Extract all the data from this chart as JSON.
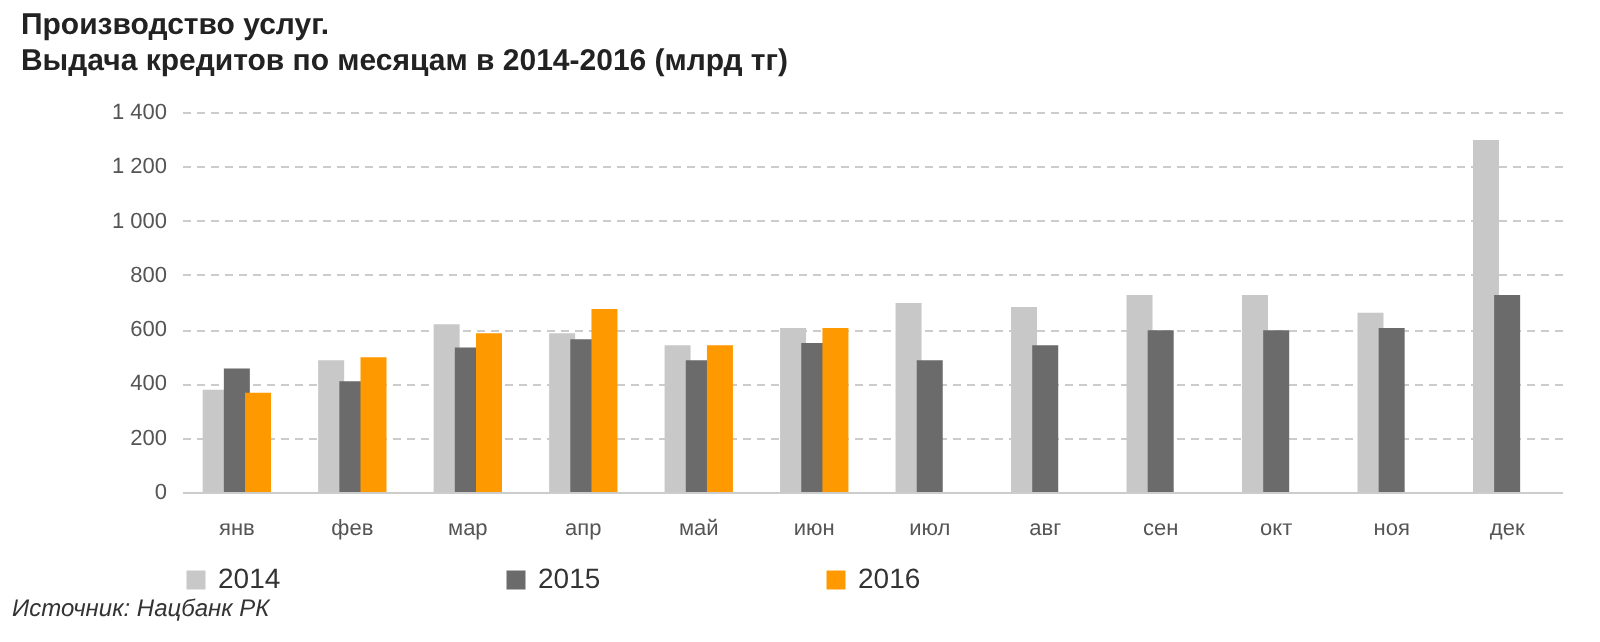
{
  "chart_data": {
    "type": "bar",
    "title": "Производство услуг.",
    "subtitle": "Выдача кредитов по месяцам в 2014-2016 (млрд тг)",
    "categories": [
      "янв",
      "фев",
      "мар",
      "апр",
      "май",
      "июн",
      "июл",
      "авг",
      "сен",
      "окт",
      "ноя",
      "дек"
    ],
    "series": [
      {
        "name": "2014",
        "color": "#c8c8c8",
        "values": [
          377,
          485,
          618,
          585,
          541,
          604,
          696,
          682,
          726,
          726,
          660,
          1297
        ]
      },
      {
        "name": "2015",
        "color": "#6b6b6b",
        "values": [
          455,
          408,
          532,
          563,
          485,
          549,
          485,
          541,
          596,
          596,
          604,
          726
        ]
      },
      {
        "name": "2016",
        "color": "#ff9900",
        "values": [
          366,
          496,
          585,
          674,
          541,
          604,
          null,
          null,
          null,
          null,
          null,
          null
        ]
      }
    ],
    "ylim": [
      0,
      1400
    ],
    "yticks": [
      0,
      200,
      400,
      600,
      800,
      {
        "value": 1000,
        "label": "1 000"
      },
      {
        "value": 1200,
        "label": "1 200"
      },
      {
        "value": 1400,
        "label": "1 400"
      }
    ],
    "grid": "y",
    "legend": "bottom",
    "annotations": [
      "Источник: Нацбанк РК"
    ]
  }
}
